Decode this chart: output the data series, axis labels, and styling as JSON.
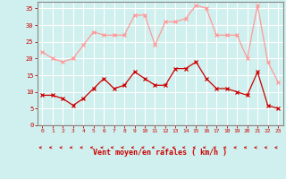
{
  "x": [
    0,
    1,
    2,
    3,
    4,
    5,
    6,
    7,
    8,
    9,
    10,
    11,
    12,
    13,
    14,
    15,
    16,
    17,
    18,
    19,
    20,
    21,
    22,
    23
  ],
  "vent_moyen": [
    9,
    9,
    8,
    6,
    8,
    11,
    14,
    11,
    12,
    16,
    14,
    12,
    12,
    17,
    17,
    19,
    14,
    11,
    11,
    10,
    9,
    16,
    6,
    5
  ],
  "rafales": [
    22,
    20,
    19,
    20,
    24,
    28,
    27,
    27,
    27,
    33,
    33,
    24,
    31,
    31,
    32,
    36,
    35,
    27,
    27,
    27,
    20,
    36,
    19,
    13
  ],
  "bg_color": "#cff0ee",
  "grid_color": "#ffffff",
  "line_color_moyen": "#cc0000",
  "line_color_rafales": "#ff9999",
  "xlabel": "Vent moyen/en rafales ( km/h )",
  "ylim": [
    0,
    37
  ],
  "xlim": [
    -0.5,
    23.5
  ],
  "yticks": [
    0,
    5,
    10,
    15,
    20,
    25,
    30,
    35
  ],
  "xticks": [
    0,
    1,
    2,
    3,
    4,
    5,
    6,
    7,
    8,
    9,
    10,
    11,
    12,
    13,
    14,
    15,
    16,
    17,
    18,
    19,
    20,
    21,
    22,
    23
  ]
}
